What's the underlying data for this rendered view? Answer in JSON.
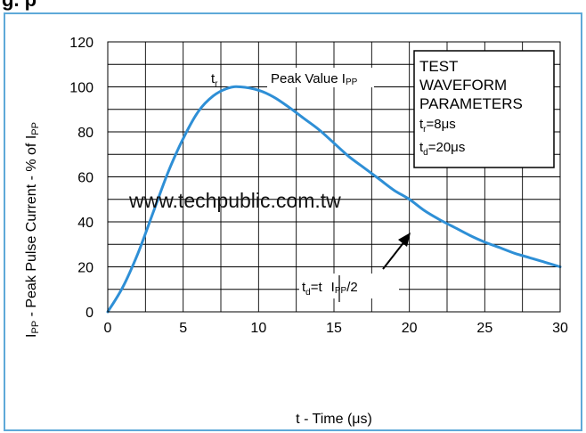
{
  "header": {
    "text": "g.    p"
  },
  "watermark": "www.techpublic.com.tw",
  "legend_box": {
    "lines": [
      "TEST",
      "WAVEFORM",
      "PARAMETERS"
    ],
    "tr_label": {
      "main": "t",
      "sub": "r",
      "value": "=8μs"
    },
    "td_label": {
      "main": "t",
      "sub": "d",
      "value": "=20μs"
    }
  },
  "annotations": {
    "tr": {
      "main": "t",
      "sub": "r"
    },
    "peak": {
      "text": "Peak Value I",
      "sub": "PP"
    },
    "td": {
      "pre": "t",
      "pre_sub": "d",
      "mid": "=t",
      "post": "I",
      "post_sub": "PP",
      "tail": "/2"
    }
  },
  "colors": {
    "curve": "#2e8fd6",
    "frame": "#5ea9d8",
    "grid": "#000000"
  },
  "chart_data": {
    "type": "line",
    "title": "",
    "xlabel": "t - Time (μs)",
    "ylabel": {
      "main": "I",
      "sub": "PP",
      "rest": " - Peak Pulse Current - % of I",
      "rest_sub": "PP"
    },
    "xlim": [
      0,
      30
    ],
    "ylim": [
      0,
      120
    ],
    "x_ticks": [
      0,
      5,
      10,
      15,
      20,
      25,
      30
    ],
    "y_ticks": [
      0,
      20,
      40,
      60,
      80,
      100,
      120
    ],
    "grid": true,
    "series": [
      {
        "x": [
          0,
          1,
          2,
          3,
          4,
          5,
          6,
          7,
          8,
          8.8,
          10,
          11,
          12,
          13,
          14,
          15,
          16,
          17,
          18,
          19,
          20,
          21,
          22,
          23,
          24,
          25,
          26,
          27,
          28,
          29,
          30
        ],
        "y": [
          0,
          11,
          26,
          44,
          62,
          77,
          89,
          96,
          99.5,
          100,
          98.5,
          95.5,
          91,
          86,
          81,
          75,
          69,
          64,
          59,
          54,
          50,
          45,
          41,
          37.5,
          34,
          31,
          28.5,
          26,
          24,
          22,
          20
        ]
      }
    ]
  }
}
